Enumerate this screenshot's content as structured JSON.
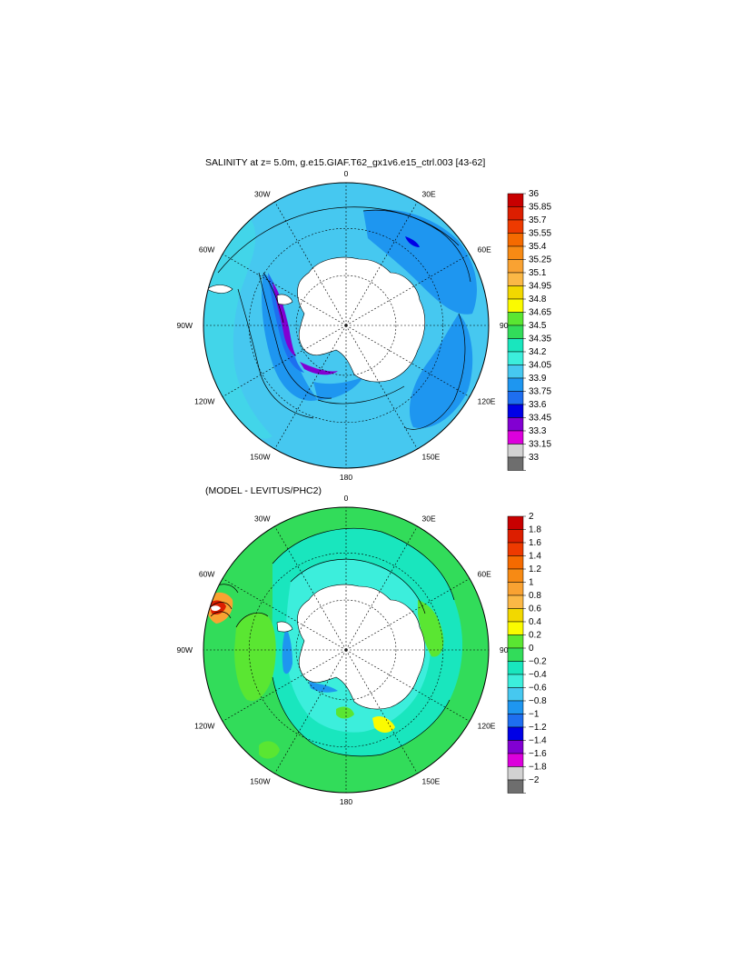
{
  "panels": [
    {
      "title": "SALINITY at z=   5.0m, g.e15.GIAF.T62_gx1v6.e15_ctrl.003 [43-62]",
      "lon_labels": [
        "0",
        "30E",
        "60E",
        "90E",
        "120E",
        "150E",
        "180",
        "150W",
        "120W",
        "90W",
        "60W",
        "30W"
      ],
      "colorbar_labels": [
        "36",
        "35.85",
        "35.7",
        "35.55",
        "35.4",
        "35.25",
        "35.1",
        "34.95",
        "34.8",
        "34.65",
        "34.5",
        "34.35",
        "34.2",
        "34.05",
        "33.9",
        "33.75",
        "33.6",
        "33.45",
        "33.3",
        "33.15",
        "33"
      ],
      "colors": [
        "#c80000",
        "#dc1e00",
        "#ee3a00",
        "#f56a00",
        "#f78a14",
        "#f9a232",
        "#fbb846",
        "#f2d800",
        "#fbfb00",
        "#5ae632",
        "#32dc5a",
        "#19e6be",
        "#3ceedc",
        "#46c8f0",
        "#1e96f0",
        "#1e6ef0",
        "#0000e6",
        "#8200d2",
        "#dc00dc",
        "#d2d2d2",
        "#6e6e6e"
      ]
    },
    {
      "title": "(MODEL - LEVITUS/PHC2)",
      "lon_labels": [
        "0",
        "30E",
        "60E",
        "90E",
        "120E",
        "150E",
        "180",
        "150W",
        "120W",
        "90W",
        "60W",
        "30W"
      ],
      "colorbar_labels": [
        "2",
        "1.8",
        "1.6",
        "1.4",
        "1.2",
        "1",
        "0.8",
        "0.6",
        "0.4",
        "0.2",
        "0",
        "−0.2",
        "−0.4",
        "−0.6",
        "−0.8",
        "−1",
        "−1.2",
        "−1.4",
        "−1.6",
        "−1.8",
        "−2"
      ],
      "colors": [
        "#c80000",
        "#dc1e00",
        "#ee3a00",
        "#f56a00",
        "#f78a14",
        "#f9a232",
        "#fbb846",
        "#f2d800",
        "#fbfb00",
        "#5ae632",
        "#32dc5a",
        "#19e6be",
        "#3ceedc",
        "#46c8f0",
        "#1e96f0",
        "#1e6ef0",
        "#0000e6",
        "#8200d2",
        "#dc00dc",
        "#d2d2d2",
        "#6e6e6e"
      ]
    }
  ],
  "chart_data": [
    {
      "type": "heatmap",
      "title": "SALINITY at z=   5.0m, g.e15.GIAF.T62_gx1v6.e15_ctrl.003 [43-62]",
      "projection": "south polar stereographic",
      "colorbar_levels": [
        36,
        35.85,
        35.7,
        35.55,
        35.4,
        35.25,
        35.1,
        34.95,
        34.8,
        34.65,
        34.5,
        34.35,
        34.2,
        34.05,
        33.9,
        33.75,
        33.6,
        33.45,
        33.3,
        33.15,
        33
      ],
      "lon_ticks": [
        "0",
        "30E",
        "60E",
        "90E",
        "120E",
        "150E",
        "180",
        "150W",
        "120W",
        "90W",
        "60W",
        "30W"
      ]
    },
    {
      "type": "heatmap",
      "title": "(MODEL - LEVITUS/PHC2)",
      "projection": "south polar stereographic",
      "colorbar_levels": [
        2,
        1.8,
        1.6,
        1.4,
        1.2,
        1,
        0.8,
        0.6,
        0.4,
        0.2,
        0,
        -0.2,
        -0.4,
        -0.6,
        -0.8,
        -1,
        -1.2,
        -1.4,
        -1.6,
        -1.8,
        -2
      ],
      "lon_ticks": [
        "0",
        "30E",
        "60E",
        "90E",
        "120E",
        "150E",
        "180",
        "150W",
        "120W",
        "90W",
        "60W",
        "30W"
      ]
    }
  ]
}
